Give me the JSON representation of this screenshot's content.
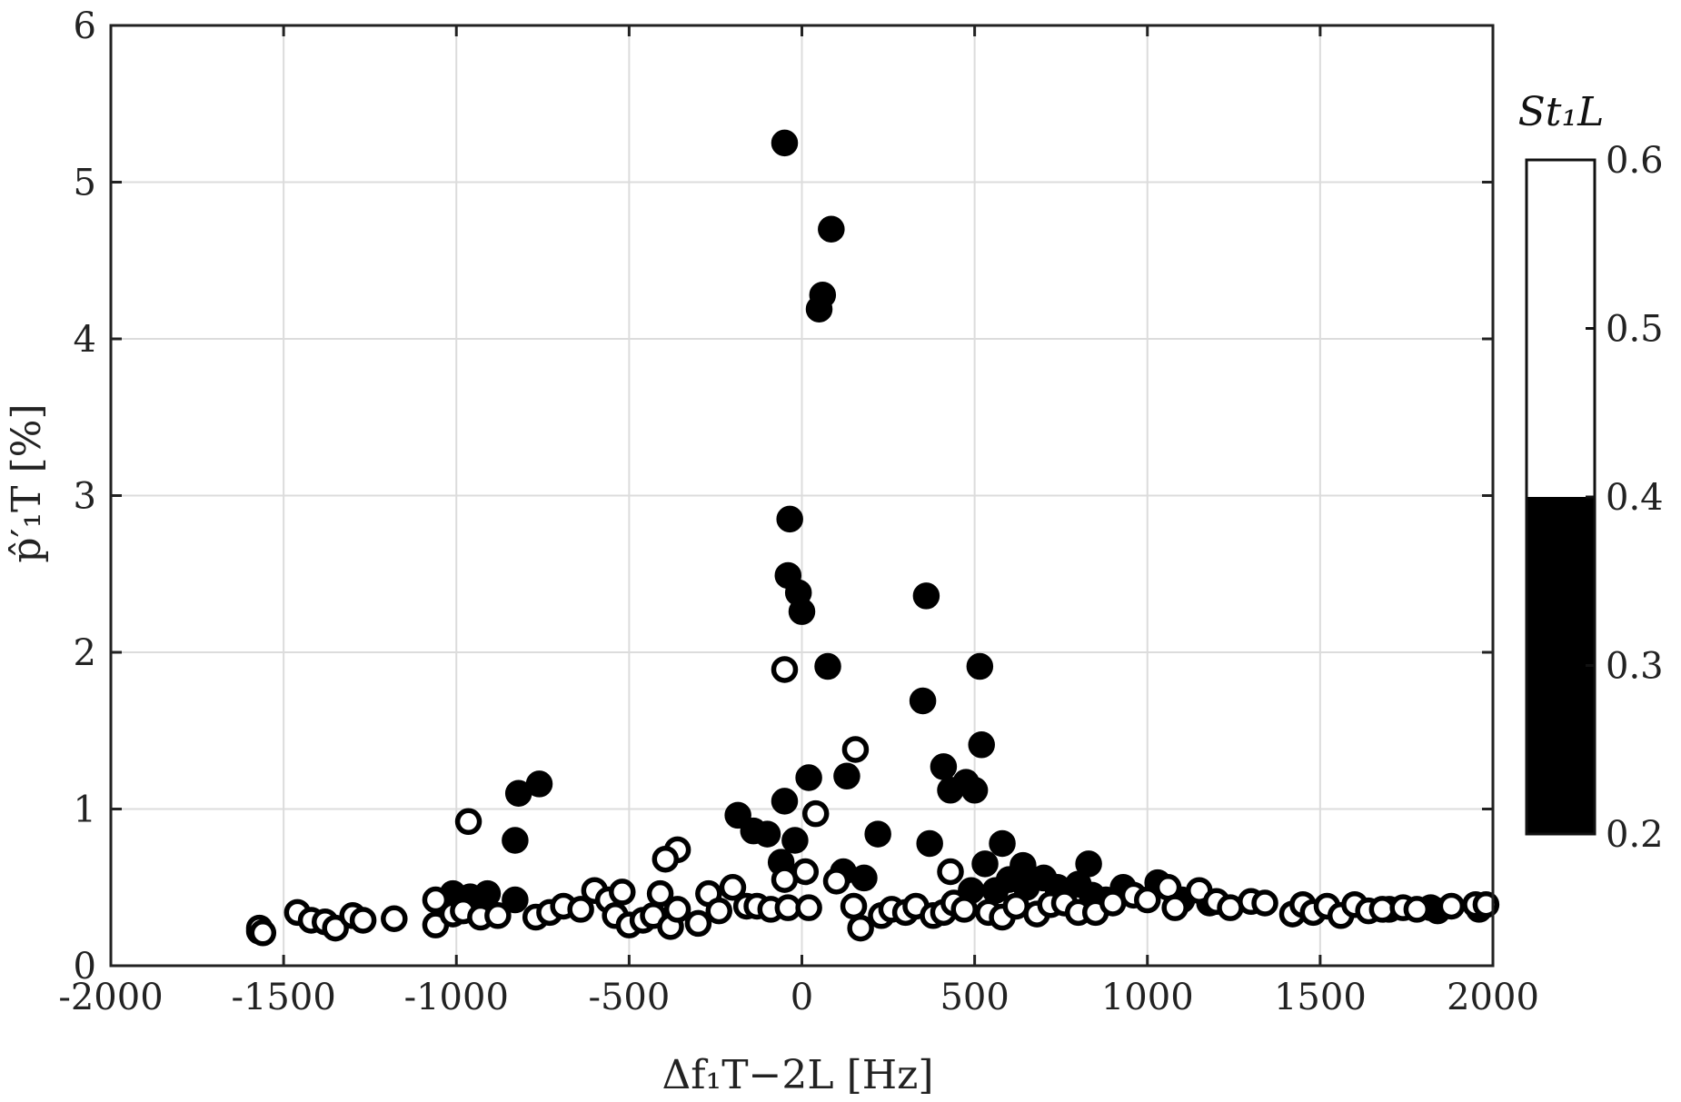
{
  "chart_data": {
    "type": "scatter",
    "title": "",
    "xlabel": "Δf₁T−2L [Hz]",
    "ylabel": "p̂′₁T [%]",
    "xlim": [
      -2000,
      2000
    ],
    "ylim": [
      0,
      6
    ],
    "x_ticks": [
      "-2000",
      "-1500",
      "-1000",
      "-500",
      "0",
      "500",
      "1000",
      "1500",
      "2000"
    ],
    "y_ticks": [
      "0",
      "1",
      "2",
      "3",
      "4",
      "5",
      "6"
    ],
    "grid": true,
    "colorbar": {
      "title": "St₁L",
      "ticks": [
        "0.2",
        "0.3",
        "0.4",
        "0.5",
        "0.6"
      ],
      "range": [
        0.2,
        0.6
      ],
      "threshold": 0.4,
      "low_color": "#000000",
      "high_color": "#ffffff"
    },
    "series": [
      {
        "name": "St1L < 0.4",
        "fill": "#000000",
        "points": [
          [
            -50,
            5.25
          ],
          [
            85,
            4.7
          ],
          [
            60,
            4.28
          ],
          [
            50,
            4.19
          ],
          [
            -35,
            2.85
          ],
          [
            -40,
            2.49
          ],
          [
            -10,
            2.38
          ],
          [
            0,
            2.26
          ],
          [
            360,
            2.36
          ],
          [
            515,
            1.91
          ],
          [
            75,
            1.91
          ],
          [
            350,
            1.69
          ],
          [
            520,
            1.41
          ],
          [
            410,
            1.27
          ],
          [
            430,
            1.12
          ],
          [
            475,
            1.17
          ],
          [
            500,
            1.12
          ],
          [
            20,
            1.2
          ],
          [
            130,
            1.21
          ],
          [
            -50,
            1.05
          ],
          [
            -760,
            1.16
          ],
          [
            -820,
            1.1
          ],
          [
            -830,
            0.8
          ],
          [
            -185,
            0.96
          ],
          [
            -140,
            0.86
          ],
          [
            -100,
            0.84
          ],
          [
            -20,
            0.8
          ],
          [
            220,
            0.84
          ],
          [
            370,
            0.78
          ],
          [
            -60,
            0.66
          ],
          [
            120,
            0.6
          ],
          [
            180,
            0.56
          ],
          [
            530,
            0.65
          ],
          [
            580,
            0.78
          ],
          [
            640,
            0.64
          ],
          [
            700,
            0.56
          ],
          [
            740,
            0.5
          ],
          [
            800,
            0.52
          ],
          [
            830,
            0.65
          ],
          [
            840,
            0.45
          ],
          [
            -1010,
            0.46
          ],
          [
            -960,
            0.44
          ],
          [
            -910,
            0.46
          ],
          [
            -830,
            0.42
          ],
          [
            650,
            0.5
          ],
          [
            600,
            0.55
          ],
          [
            560,
            0.48
          ],
          [
            930,
            0.5
          ],
          [
            1030,
            0.53
          ],
          [
            1100,
            0.42
          ],
          [
            1180,
            0.4
          ],
          [
            1700,
            0.36
          ],
          [
            1820,
            0.37
          ],
          [
            1840,
            0.35
          ],
          [
            1960,
            0.36
          ],
          [
            880,
            0.42
          ],
          [
            490,
            0.48
          ],
          [
            -1570,
            0.22
          ]
        ]
      },
      {
        "name": "St1L ≥ 0.4",
        "fill": "#ffffff",
        "points": [
          [
            -50,
            1.89
          ],
          [
            155,
            1.38
          ],
          [
            -965,
            0.92
          ],
          [
            40,
            0.97
          ],
          [
            -360,
            0.74
          ],
          [
            -395,
            0.68
          ],
          [
            10,
            0.6
          ],
          [
            -50,
            0.55
          ],
          [
            100,
            0.54
          ],
          [
            430,
            0.6
          ],
          [
            -1570,
            0.24
          ],
          [
            -1560,
            0.21
          ],
          [
            -1460,
            0.34
          ],
          [
            -1420,
            0.29
          ],
          [
            -1380,
            0.28
          ],
          [
            -1350,
            0.24
          ],
          [
            -1300,
            0.32
          ],
          [
            -1270,
            0.29
          ],
          [
            -1180,
            0.3
          ],
          [
            -1060,
            0.42
          ],
          [
            -1060,
            0.26
          ],
          [
            -1010,
            0.33
          ],
          [
            -980,
            0.35
          ],
          [
            -930,
            0.31
          ],
          [
            -880,
            0.32
          ],
          [
            -770,
            0.31
          ],
          [
            -730,
            0.34
          ],
          [
            -690,
            0.38
          ],
          [
            -640,
            0.36
          ],
          [
            -600,
            0.48
          ],
          [
            -560,
            0.42
          ],
          [
            -540,
            0.32
          ],
          [
            -520,
            0.47
          ],
          [
            -500,
            0.26
          ],
          [
            -460,
            0.29
          ],
          [
            -430,
            0.32
          ],
          [
            -410,
            0.46
          ],
          [
            -380,
            0.25
          ],
          [
            -360,
            0.36
          ],
          [
            -300,
            0.27
          ],
          [
            -270,
            0.46
          ],
          [
            -240,
            0.35
          ],
          [
            -200,
            0.5
          ],
          [
            -160,
            0.38
          ],
          [
            -130,
            0.38
          ],
          [
            -90,
            0.36
          ],
          [
            -40,
            0.37
          ],
          [
            20,
            0.37
          ],
          [
            150,
            0.38
          ],
          [
            170,
            0.24
          ],
          [
            230,
            0.32
          ],
          [
            260,
            0.36
          ],
          [
            300,
            0.34
          ],
          [
            330,
            0.38
          ],
          [
            380,
            0.32
          ],
          [
            410,
            0.34
          ],
          [
            440,
            0.4
          ],
          [
            470,
            0.36
          ],
          [
            540,
            0.34
          ],
          [
            580,
            0.31
          ],
          [
            620,
            0.38
          ],
          [
            680,
            0.33
          ],
          [
            720,
            0.39
          ],
          [
            760,
            0.4
          ],
          [
            800,
            0.34
          ],
          [
            850,
            0.34
          ],
          [
            900,
            0.4
          ],
          [
            960,
            0.45
          ],
          [
            1000,
            0.42
          ],
          [
            1060,
            0.5
          ],
          [
            1080,
            0.37
          ],
          [
            1150,
            0.48
          ],
          [
            1200,
            0.41
          ],
          [
            1240,
            0.37
          ],
          [
            1300,
            0.41
          ],
          [
            1340,
            0.4
          ],
          [
            1420,
            0.33
          ],
          [
            1450,
            0.39
          ],
          [
            1480,
            0.34
          ],
          [
            1520,
            0.38
          ],
          [
            1560,
            0.32
          ],
          [
            1600,
            0.39
          ],
          [
            1640,
            0.35
          ],
          [
            1680,
            0.36
          ],
          [
            1740,
            0.37
          ],
          [
            1780,
            0.36
          ],
          [
            1880,
            0.38
          ],
          [
            1950,
            0.39
          ],
          [
            1980,
            0.39
          ]
        ]
      }
    ]
  }
}
